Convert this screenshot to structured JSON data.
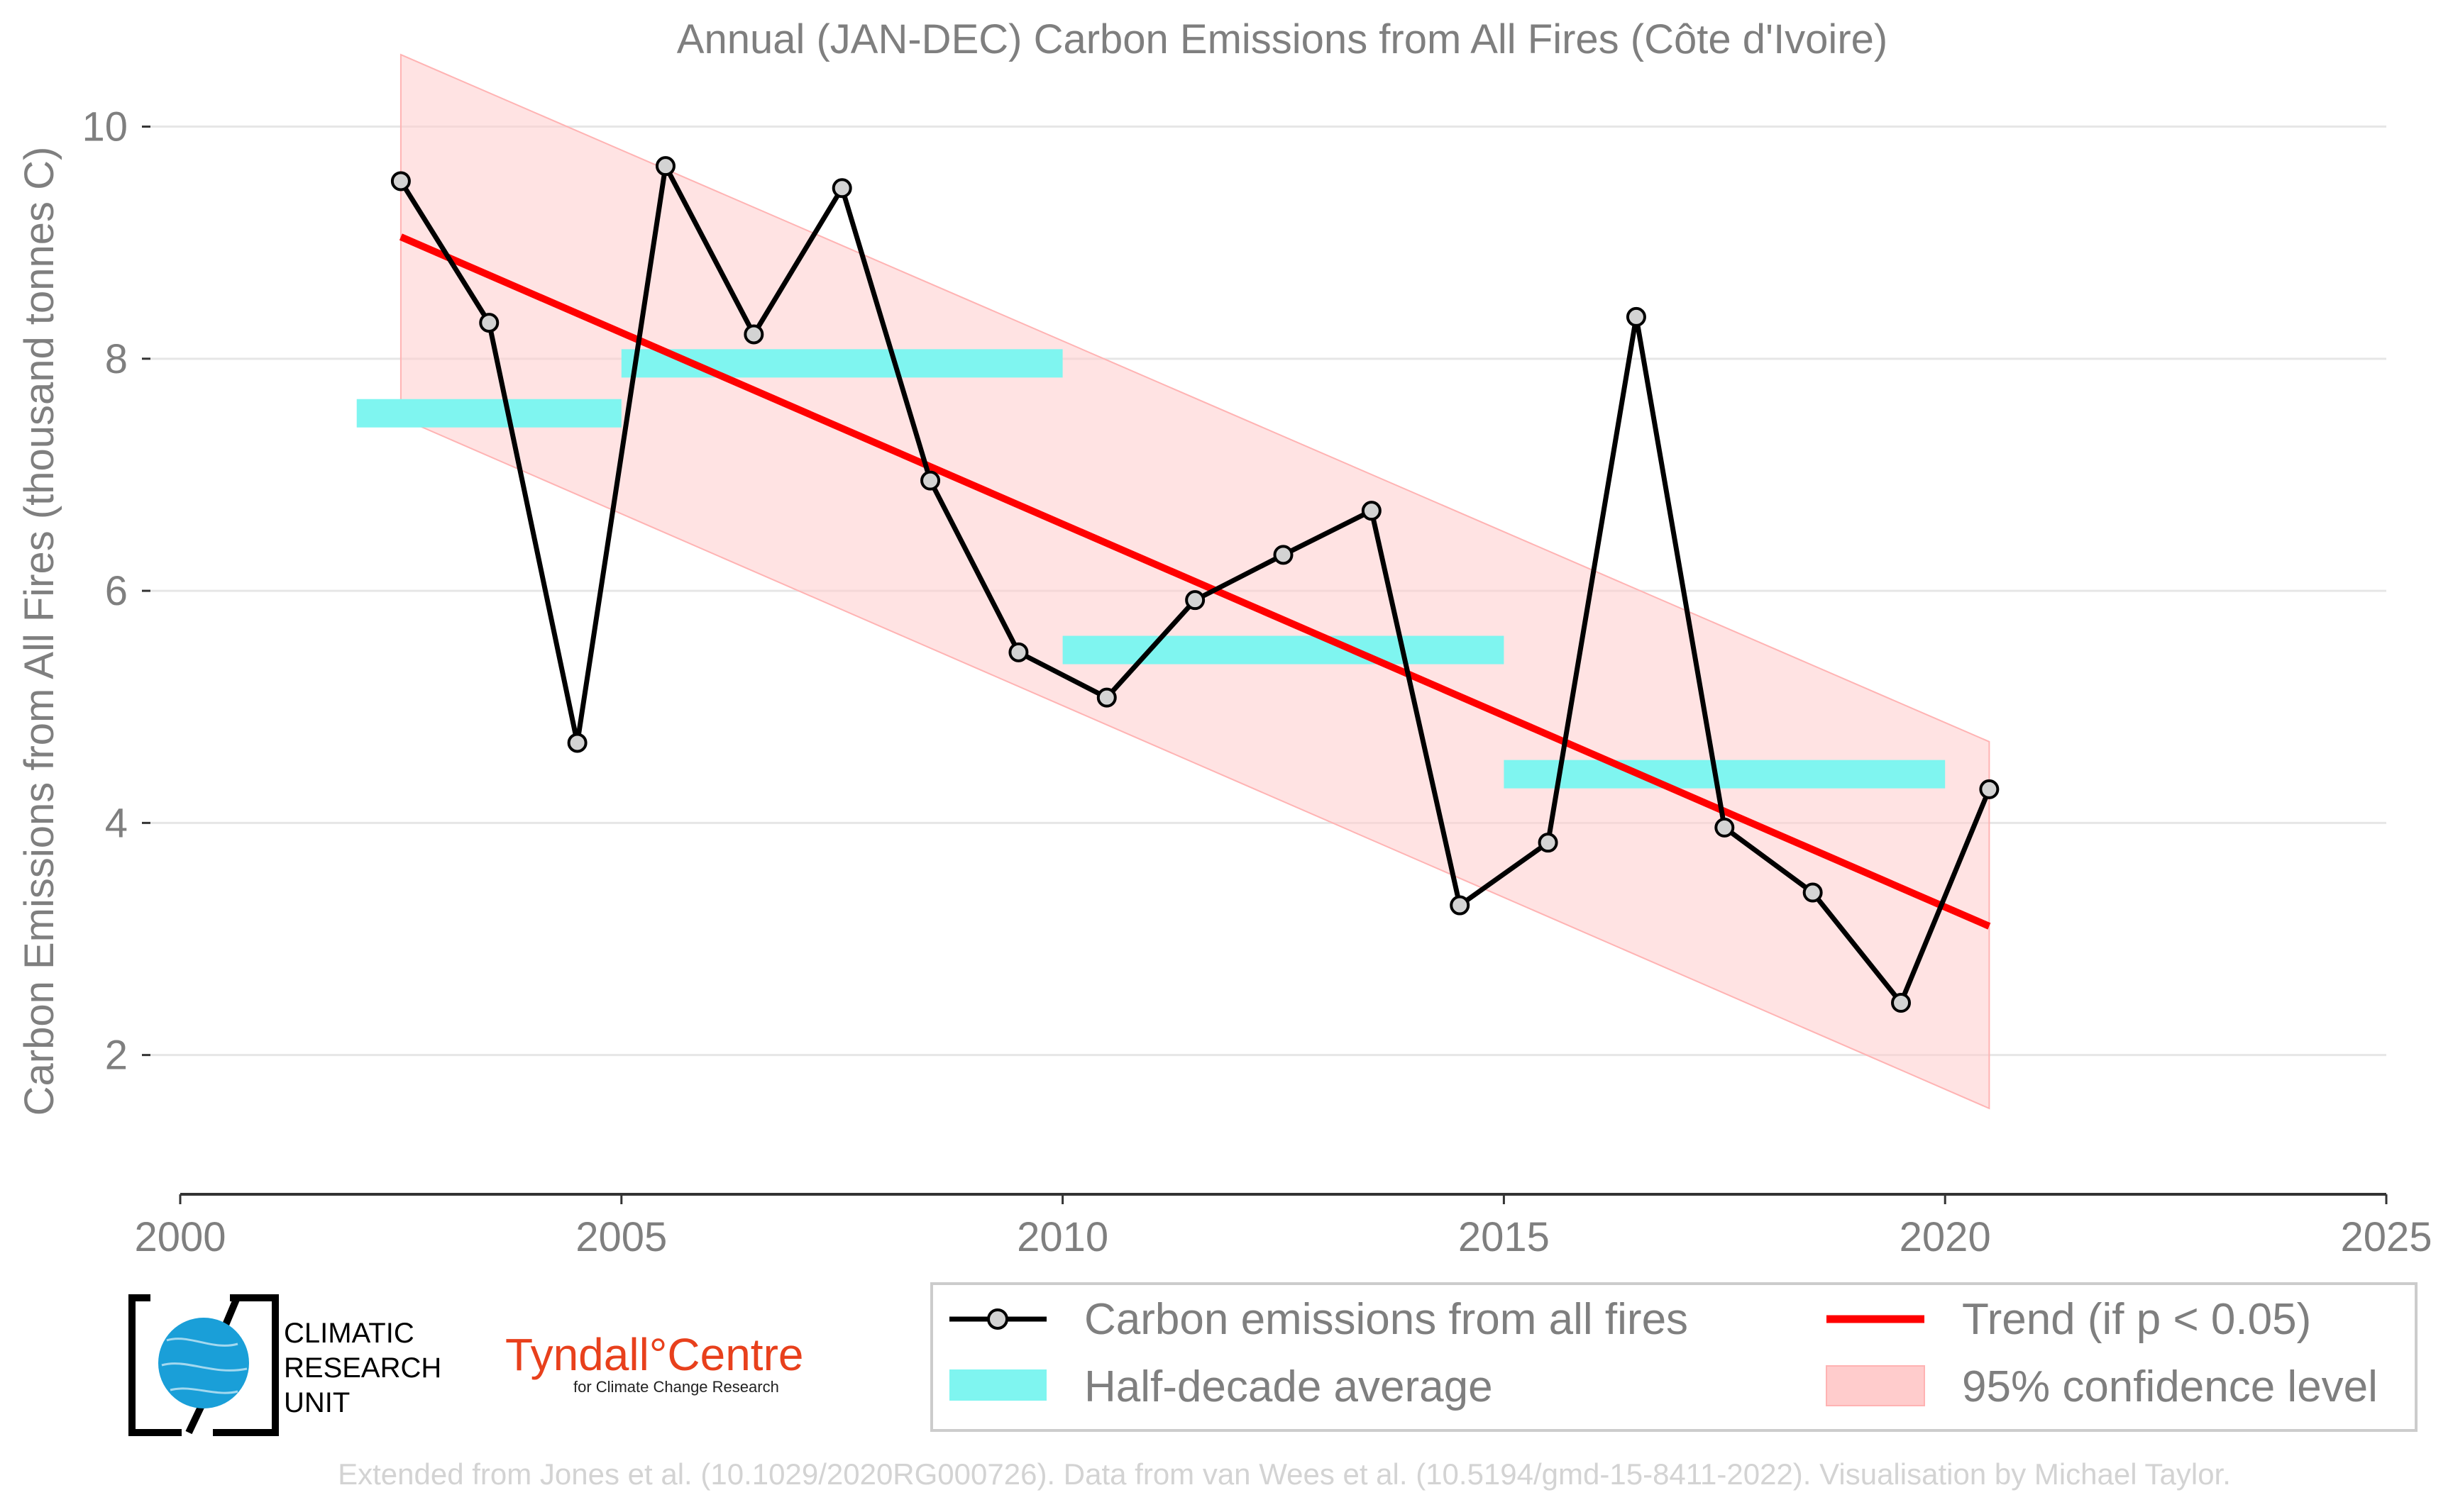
{
  "chart_data": {
    "type": "line",
    "title": "Annual (JAN-DEC) Carbon Emissions from All Fires (Côte d'Ivoire)",
    "xlabel": "",
    "ylabel": "Carbon Emissions from All Fires (thousand tonnes C)",
    "xlim": [
      2000,
      2025
    ],
    "ylim": [
      0.8,
      10.7
    ],
    "xticks": [
      2000,
      2005,
      2010,
      2015,
      2020,
      2025
    ],
    "yticks": [
      2,
      4,
      6,
      8,
      10
    ],
    "grid": true,
    "legend_position": "bottom",
    "series": [
      {
        "name": "Carbon emissions from all fires",
        "type": "line",
        "color": "#000000",
        "marker_fill": "#d3d3d3",
        "x": [
          2002.5,
          2003.5,
          2004.5,
          2005.5,
          2006.5,
          2007.5,
          2008.5,
          2009.5,
          2010.5,
          2011.5,
          2012.5,
          2013.5,
          2014.5,
          2015.5,
          2016.5,
          2017.5,
          2018.5,
          2019.5,
          2020.5
        ],
        "y": [
          9.53,
          8.31,
          4.69,
          9.66,
          8.21,
          9.47,
          6.95,
          5.47,
          5.08,
          5.92,
          6.31,
          6.69,
          3.29,
          3.83,
          8.36,
          3.96,
          3.4,
          2.45,
          4.29
        ]
      },
      {
        "name": "Half-decade average",
        "type": "step",
        "color": "#7ff5f0",
        "segments": [
          {
            "x0": 2002,
            "x1": 2005,
            "y": 7.53
          },
          {
            "x0": 2005,
            "x1": 2010,
            "y": 7.96
          },
          {
            "x0": 2010,
            "x1": 2015,
            "y": 5.49
          },
          {
            "x0": 2015,
            "x1": 2020,
            "y": 4.42
          }
        ]
      },
      {
        "name": "Trend (if p < 0.05)",
        "type": "line",
        "color": "#ff0000",
        "x": [
          2002.5,
          2020.5
        ],
        "y": [
          9.05,
          3.11
        ]
      },
      {
        "name": "95% confidence level",
        "type": "area",
        "color": "#ffcccc",
        "x": [
          2002.5,
          2020.5
        ],
        "upper": [
          10.62,
          4.7
        ],
        "lower": [
          7.49,
          1.54
        ]
      }
    ]
  },
  "colors": {
    "text_gray": "#7f7f7f",
    "credit_gray": "#d3d3d3",
    "grid": "#e6e6e6",
    "trend": "#ff0000",
    "half_decade": "#7ff5f0",
    "confidence": "#ffcccc",
    "cru_blue": "#1a9fd8",
    "tyndall_orange": "#e8401c"
  },
  "legend": {
    "carbon": "Carbon emissions from all fires",
    "trend": "Trend (if p < 0.05)",
    "half_decade": "Half-decade average",
    "confidence": "95% confidence level"
  },
  "logos": {
    "cru_line1": "CLIMATIC",
    "cru_line2": "RESEARCH",
    "cru_line3": "UNIT",
    "tyndall_main": "Tyndall°Centre",
    "tyndall_sub": "for Climate Change Research"
  },
  "credit": "Extended from Jones et al. (10.1029/2020RG000726). Data from van Wees et al. (10.5194/gmd-15-8411-2022). Visualisation by Michael Taylor."
}
